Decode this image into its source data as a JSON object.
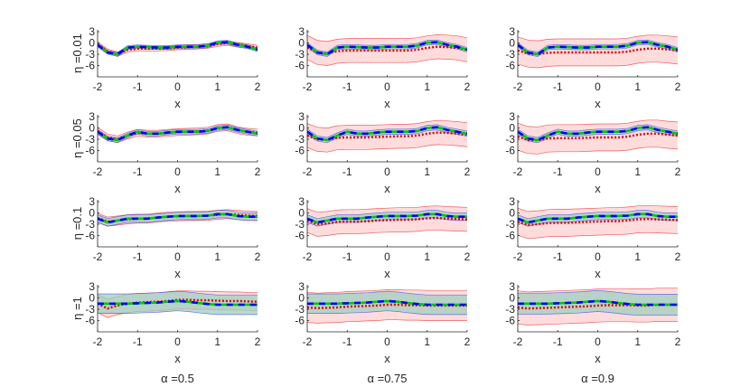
{
  "chart_data": {
    "type": "line",
    "layout": "4x3 grid of small multiples",
    "x": [
      -2,
      -1.75,
      -1.5,
      -1.25,
      -1,
      -0.75,
      -0.5,
      -0.25,
      0,
      0.25,
      0.5,
      0.75,
      1,
      1.25,
      1.5,
      1.75,
      2
    ],
    "xlim": [
      -2,
      2
    ],
    "ylim": [
      -9,
      3.5
    ],
    "xticks": [
      "-2",
      "-1",
      "0",
      "1",
      "2"
    ],
    "xtick_values": [
      -2,
      -1,
      0,
      1,
      2
    ],
    "yticks": [
      "3",
      "0",
      "-3",
      "-6"
    ],
    "ytick_values": [
      3,
      0,
      -3,
      -6
    ],
    "xlabel": "x",
    "grid": false,
    "colors": {
      "blue": "#0000ff",
      "green": "#00c800",
      "red": "#e00000",
      "red_band": "#ffd6d6",
      "blue_band": "#9fcfc0"
    },
    "row_labels": [
      "η =0.01",
      "η =0.05",
      "η =0.1",
      "η =1"
    ],
    "col_labels": [
      "α =0.5",
      "α =0.75",
      "α =0.9"
    ],
    "rows": [
      {
        "blue": [
          -0.5,
          -2.5,
          -3,
          -1.2,
          -1,
          -1.1,
          -1.2,
          -1.2,
          -1,
          -1,
          -1,
          -0.7,
          0.1,
          0.2,
          -0.5,
          -1,
          -1.8
        ],
        "green": [
          -0.5,
          -2.5,
          -3,
          -1.2,
          -1,
          -1.1,
          -1.2,
          -1.2,
          -1,
          -1,
          -1,
          -0.7,
          0.1,
          0.2,
          -0.5,
          -1,
          -1.8
        ],
        "panels": [
          {
            "red": [
              -0.3,
              -2.2,
              -3,
              -1.8,
              -1.5,
              -1.5,
              -1.5,
              -1.4,
              -1.2,
              -1.1,
              -1,
              -0.8,
              -0.3,
              0,
              -0.5,
              -0.8,
              -1.2
            ],
            "blue_band": 0.5,
            "red_band": 0.6
          },
          {
            "red": [
              -1.2,
              -2.5,
              -2.8,
              -2.2,
              -2,
              -2,
              -2,
              -2,
              -2,
              -2,
              -2,
              -1.8,
              -1.3,
              -1,
              -1.1,
              -1.3,
              -1.8
            ],
            "blue_band": 0.6,
            "red_band": 3.2
          },
          {
            "red": [
              -2,
              -2.8,
              -3,
              -2.6,
              -2.5,
              -2.5,
              -2.5,
              -2.5,
              -2.5,
              -2.5,
              -2.5,
              -2.3,
              -1.8,
              -1.5,
              -1.5,
              -1.7,
              -2
            ],
            "blue_band": 0.6,
            "red_band": 3.6
          }
        ]
      },
      {
        "blue": [
          -1,
          -2.8,
          -3.2,
          -2,
          -1,
          -1.5,
          -1.5,
          -1.2,
          -1,
          -1,
          -1,
          -0.8,
          0,
          0.2,
          -0.5,
          -1,
          -1.5
        ],
        "green": [
          -1,
          -2.8,
          -3.2,
          -2,
          -1,
          -1.5,
          -1.5,
          -1.2,
          -1,
          -1,
          -1,
          -0.8,
          0,
          0.2,
          -0.5,
          -1,
          -1.5
        ],
        "panels": [
          {
            "red": [
              -0.8,
              -2.5,
              -3,
              -2,
              -1.3,
              -1.5,
              -1.5,
              -1.3,
              -1.1,
              -1,
              -0.9,
              -0.7,
              0,
              0.2,
              -0.6,
              -1,
              -1.2
            ],
            "blue_band": 0.6,
            "red_band": 0.9
          },
          {
            "red": [
              -2,
              -3,
              -3.2,
              -2.6,
              -2.5,
              -2.5,
              -2.5,
              -2.4,
              -2.3,
              -2.2,
              -2.2,
              -2,
              -1.5,
              -1.2,
              -1.3,
              -1.5,
              -1.8
            ],
            "blue_band": 0.7,
            "red_band": 3.2
          },
          {
            "red": [
              -2.3,
              -3.2,
              -3.3,
              -2.8,
              -2.7,
              -2.7,
              -2.7,
              -2.6,
              -2.5,
              -2.5,
              -2.5,
              -2.3,
              -1.8,
              -1.5,
              -1.5,
              -1.8,
              -2
            ],
            "blue_band": 0.7,
            "red_band": 3.6
          }
        ]
      },
      {
        "blue": [
          -1.5,
          -2.5,
          -2,
          -1.5,
          -1.5,
          -1.5,
          -1.2,
          -1,
          -0.8,
          -0.8,
          -0.8,
          -0.7,
          -0.3,
          -0.3,
          -0.8,
          -1,
          -1
        ],
        "green": [
          -1.5,
          -2.5,
          -2,
          -1.5,
          -1.5,
          -1.5,
          -1.2,
          -1,
          -0.8,
          -0.8,
          -0.8,
          -0.7,
          -0.3,
          -0.3,
          -0.8,
          -1,
          -1
        ],
        "panels": [
          {
            "red": [
              -1.3,
              -2.3,
              -2,
              -1.7,
              -1.5,
              -1.5,
              -1.2,
              -1,
              -0.9,
              -0.8,
              -0.8,
              -0.7,
              -0.5,
              -0.3,
              -0.5,
              -0.7,
              -0.8
            ],
            "blue_band": 1.0,
            "red_band": 1.2
          },
          {
            "red": [
              -2,
              -3,
              -2.8,
              -2.4,
              -2.3,
              -2.3,
              -2.2,
              -2,
              -1.9,
              -1.8,
              -1.8,
              -1.7,
              -1.4,
              -1.3,
              -1.5,
              -1.6,
              -1.7
            ],
            "blue_band": 1.0,
            "red_band": 3.2
          },
          {
            "red": [
              -2.3,
              -3.2,
              -3,
              -2.7,
              -2.6,
              -2.6,
              -2.5,
              -2.4,
              -2.3,
              -2.2,
              -2.2,
              -2,
              -1.7,
              -1.6,
              -1.7,
              -1.8,
              -1.9
            ],
            "blue_band": 1.0,
            "red_band": 3.6
          }
        ]
      },
      {
        "blue": [
          -1.5,
          -1.5,
          -1.5,
          -1.5,
          -1.4,
          -1.3,
          -1.2,
          -1,
          -0.8,
          -1,
          -1.3,
          -1.6,
          -1.8,
          -1.8,
          -1.8,
          -1.8,
          -1.8
        ],
        "green": [
          -1.5,
          -1.5,
          -1.5,
          -1.5,
          -1.4,
          -1.3,
          -1.2,
          -1,
          -0.8,
          -1,
          -1.3,
          -1.6,
          -1.8,
          -1.8,
          -1.8,
          -1.8,
          -1.8
        ],
        "panels": [
          {
            "red": [
              -1.5,
              -2.8,
              -2,
              -1.5,
              -1.2,
              -1.1,
              -1,
              -0.8,
              -0.5,
              -0.5,
              -0.6,
              -0.6,
              -0.7,
              -0.8,
              -0.8,
              -0.9,
              -1
            ],
            "blue_band": 2.6,
            "red_band": 2.4
          },
          {
            "red": [
              -2.5,
              -2.7,
              -2.6,
              -2.5,
              -2.3,
              -2.2,
              -2.1,
              -2,
              -1.8,
              -1.8,
              -1.9,
              -1.9,
              -2,
              -2,
              -2,
              -2,
              -2
            ],
            "blue_band": 2.6,
            "red_band": 4.0
          },
          {
            "red": [
              -2.5,
              -2.8,
              -2.7,
              -2.6,
              -2.5,
              -2.4,
              -2.3,
              -2.2,
              -2,
              -1.9,
              -1.9,
              -1.9,
              -2,
              -2,
              -1.8,
              -1.8,
              -1.8
            ],
            "blue_band": 2.8,
            "red_band": 4.4
          }
        ]
      }
    ]
  }
}
